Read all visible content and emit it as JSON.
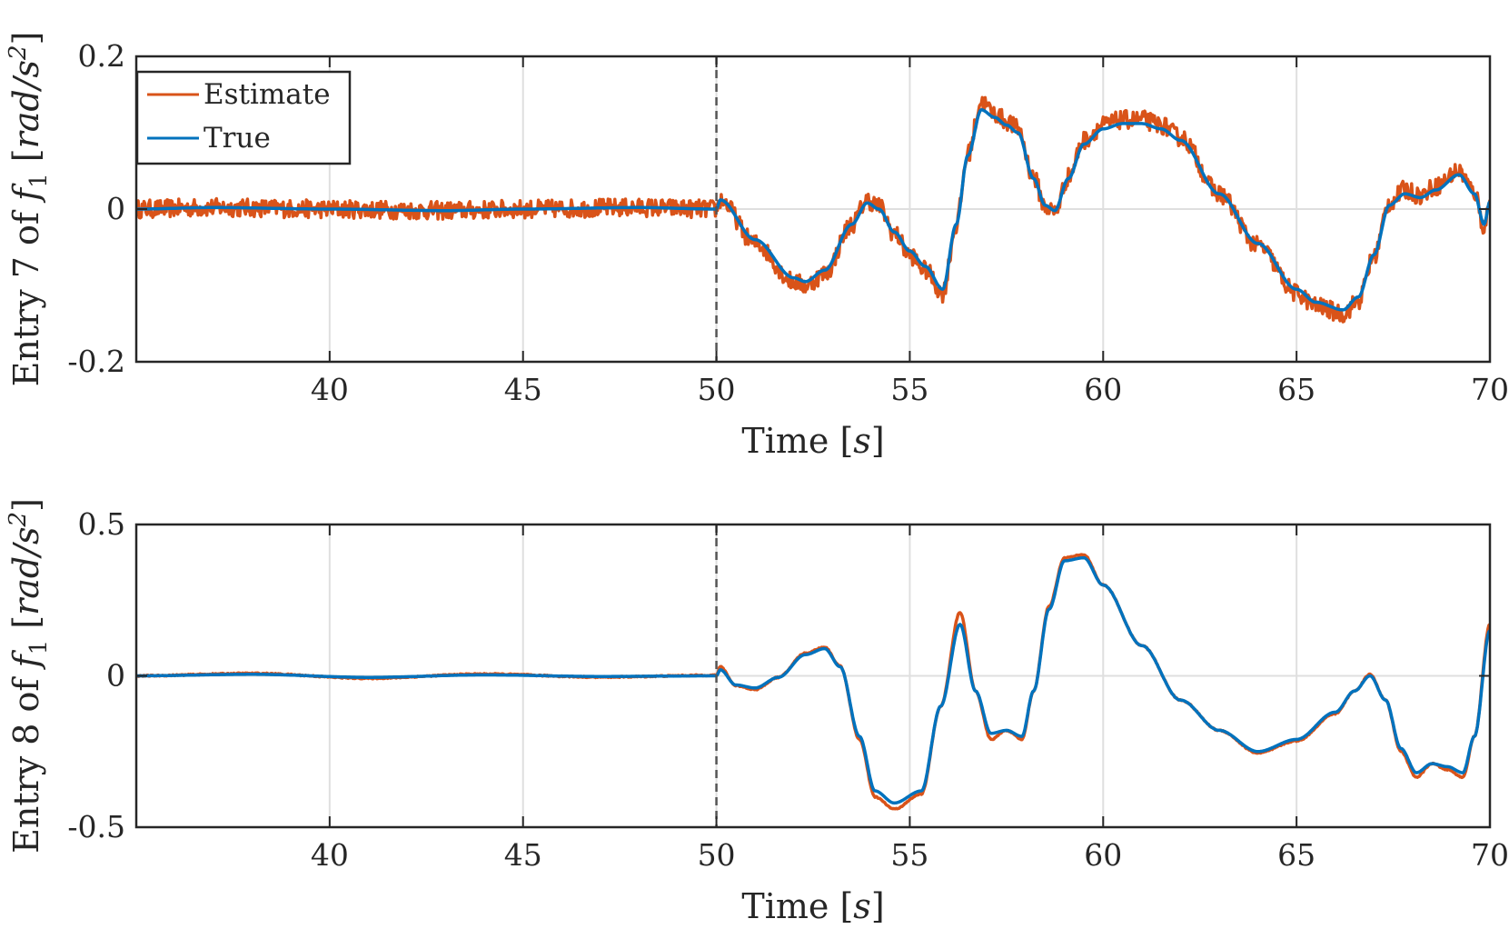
{
  "colors": {
    "estimate": "#D95319",
    "true": "#0072BD",
    "axis": "#262626",
    "grid": "#dfdfdf"
  },
  "legend": {
    "estimate_label": "Estimate",
    "true_label": "True"
  },
  "chart_data": [
    {
      "type": "line",
      "id": "entry7",
      "xlabel_main": "Time",
      "xlabel_unit": "s",
      "ylabel_main": "Entry 7 of",
      "ylabel_var": "f",
      "ylabel_sub": "1",
      "ylabel_unit": "rad/s",
      "ylabel_sup": "2",
      "xlim": [
        35,
        70
      ],
      "ylim": [
        -0.2,
        0.2
      ],
      "xticks": [
        40,
        45,
        50,
        55,
        60,
        65,
        70
      ],
      "xtick_labels": [
        "40",
        "45",
        "50",
        "55",
        "60",
        "65",
        "70"
      ],
      "yticks": [
        -0.2,
        0,
        0.2
      ],
      "ytick_labels": [
        "-0.2",
        "0",
        "0.2"
      ],
      "vline_x": 50,
      "estimate_noise": 0.012,
      "series": [
        {
          "name": "True",
          "x": [
            35,
            37,
            40,
            43,
            45,
            48,
            50,
            50.1,
            51,
            52,
            52.3,
            52.8,
            53.5,
            53.9,
            54.2,
            54.6,
            55,
            55.4,
            55.85,
            56.2,
            56.5,
            56.85,
            57.2,
            57.5,
            57.8,
            58.2,
            58.5,
            58.75,
            59.1,
            59.5,
            60,
            60.5,
            61,
            61.5,
            62,
            63,
            64,
            65,
            65.5,
            66.2,
            66.6,
            67,
            67.4,
            67.8,
            68.2,
            68.6,
            69.2,
            69.6,
            69.85,
            70
          ],
          "y": [
            0,
            0.002,
            0,
            -0.002,
            0,
            0.002,
            0,
            0.012,
            -0.04,
            -0.09,
            -0.095,
            -0.08,
            -0.02,
            0.008,
            0.0,
            -0.03,
            -0.055,
            -0.075,
            -0.105,
            -0.02,
            0.07,
            0.13,
            0.12,
            0.11,
            0.1,
            0.04,
            0.005,
            -0.002,
            0.04,
            0.085,
            0.105,
            0.112,
            0.112,
            0.105,
            0.09,
            0.02,
            -0.045,
            -0.105,
            -0.122,
            -0.132,
            -0.115,
            -0.06,
            0.005,
            0.02,
            0.015,
            0.025,
            0.045,
            0.02,
            -0.02,
            0.01
          ]
        },
        {
          "name": "Estimate",
          "x": [
            35,
            37,
            40,
            43,
            45,
            48,
            50,
            50.1,
            51,
            52,
            52.3,
            52.8,
            53.5,
            53.9,
            54.2,
            54.6,
            55,
            55.4,
            55.85,
            56.2,
            56.5,
            56.85,
            57.2,
            57.5,
            57.8,
            58.2,
            58.5,
            58.75,
            59.1,
            59.5,
            60,
            60.5,
            61,
            61.5,
            62,
            63,
            64,
            65,
            65.5,
            66.2,
            66.6,
            67,
            67.4,
            67.8,
            68.2,
            68.6,
            69.2,
            69.6,
            69.85,
            70
          ],
          "y": [
            0,
            0.002,
            0,
            -0.002,
            0,
            0.002,
            0,
            0.012,
            -0.045,
            -0.095,
            -0.1,
            -0.085,
            -0.02,
            0.012,
            0.004,
            -0.032,
            -0.06,
            -0.08,
            -0.11,
            -0.022,
            0.072,
            0.14,
            0.125,
            0.115,
            0.105,
            0.042,
            0.003,
            -0.004,
            0.042,
            0.09,
            0.11,
            0.117,
            0.117,
            0.11,
            0.094,
            0.02,
            -0.048,
            -0.11,
            -0.127,
            -0.137,
            -0.12,
            -0.062,
            0.008,
            0.025,
            0.018,
            0.03,
            0.05,
            0.022,
            -0.024,
            0.012
          ]
        }
      ]
    },
    {
      "type": "line",
      "id": "entry8",
      "xlabel_main": "Time",
      "xlabel_unit": "s",
      "ylabel_main": "Entry 8 of",
      "ylabel_var": "f",
      "ylabel_sub": "1",
      "ylabel_unit": "rad/s",
      "ylabel_sup": "2",
      "xlim": [
        35,
        70
      ],
      "ylim": [
        -0.5,
        0.5
      ],
      "xticks": [
        40,
        45,
        50,
        55,
        60,
        65,
        70
      ],
      "xtick_labels": [
        "40",
        "45",
        "50",
        "55",
        "60",
        "65",
        "70"
      ],
      "yticks": [
        -0.5,
        0,
        0.5
      ],
      "ytick_labels": [
        "-0.5",
        "0",
        "0.5"
      ],
      "vline_x": 50,
      "estimate_noise": 0.002,
      "series": [
        {
          "name": "True",
          "x": [
            35,
            38,
            41,
            44,
            47,
            50,
            50.1,
            50.5,
            51,
            51.6,
            52.3,
            52.8,
            53.2,
            53.7,
            54.1,
            54.6,
            55.3,
            55.8,
            56.3,
            56.7,
            57.1,
            57.5,
            57.9,
            58.2,
            58.6,
            59,
            59.5,
            60,
            61,
            62,
            63,
            64,
            65,
            66,
            66.5,
            66.9,
            67.3,
            67.7,
            68.1,
            68.5,
            68.9,
            69.3,
            69.6,
            70
          ],
          "y": [
            0,
            0.005,
            -0.005,
            0.003,
            -0.002,
            0,
            0.02,
            -0.03,
            -0.04,
            -0.005,
            0.07,
            0.09,
            0.03,
            -0.2,
            -0.38,
            -0.42,
            -0.38,
            -0.1,
            0.17,
            -0.05,
            -0.19,
            -0.18,
            -0.2,
            -0.05,
            0.22,
            0.38,
            0.39,
            0.3,
            0.1,
            -0.08,
            -0.18,
            -0.25,
            -0.21,
            -0.12,
            -0.05,
            0.0,
            -0.08,
            -0.24,
            -0.32,
            -0.29,
            -0.3,
            -0.32,
            -0.2,
            0.15
          ]
        },
        {
          "name": "Estimate",
          "x": [
            35,
            38,
            41,
            44,
            47,
            50,
            50.1,
            50.5,
            51,
            51.6,
            52.3,
            52.8,
            53.2,
            53.7,
            54.1,
            54.6,
            55.3,
            55.8,
            56.3,
            56.7,
            57.1,
            57.5,
            57.9,
            58.2,
            58.6,
            59,
            59.5,
            60,
            61,
            62,
            63,
            64,
            65,
            66,
            66.5,
            66.9,
            67.3,
            67.7,
            68.1,
            68.5,
            68.9,
            69.3,
            69.6,
            70
          ],
          "y": [
            0,
            0.008,
            -0.008,
            0.006,
            -0.004,
            0.002,
            0.03,
            -0.032,
            -0.045,
            -0.005,
            0.075,
            0.095,
            0.032,
            -0.21,
            -0.4,
            -0.44,
            -0.39,
            -0.1,
            0.21,
            -0.05,
            -0.21,
            -0.18,
            -0.21,
            -0.05,
            0.23,
            0.39,
            0.4,
            0.3,
            0.1,
            -0.08,
            -0.18,
            -0.255,
            -0.215,
            -0.125,
            -0.05,
            0.005,
            -0.08,
            -0.25,
            -0.335,
            -0.29,
            -0.31,
            -0.335,
            -0.2,
            0.17
          ]
        }
      ]
    }
  ]
}
